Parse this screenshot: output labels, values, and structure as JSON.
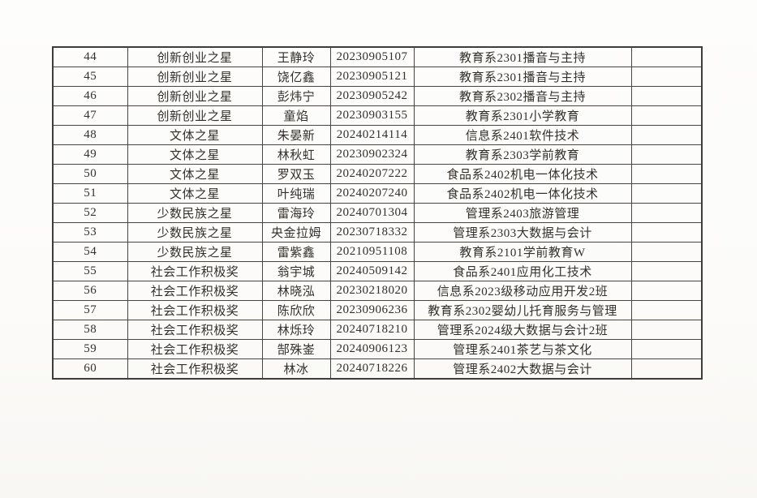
{
  "page": {
    "background_color": "#fcfbf9",
    "border_color": "#3f3d39",
    "text_color": "#33302b"
  },
  "table": {
    "rows": [
      {
        "no": "44",
        "award": "创新创业之星",
        "name": "王静玲",
        "student_id": "20230905107",
        "class_name": "教育系2301播音与主持",
        "note": ""
      },
      {
        "no": "45",
        "award": "创新创业之星",
        "name": "饶亿鑫",
        "student_id": "20230905121",
        "class_name": "教育系2301播音与主持",
        "note": ""
      },
      {
        "no": "46",
        "award": "创新创业之星",
        "name": "彭炜宁",
        "student_id": "20230905242",
        "class_name": "教育系2302播音与主持",
        "note": ""
      },
      {
        "no": "47",
        "award": "创新创业之星",
        "name": "童焰",
        "student_id": "20230903155",
        "class_name": "教育系2301小学教育",
        "note": ""
      },
      {
        "no": "48",
        "award": "文体之星",
        "name": "朱晏新",
        "student_id": "20240214114",
        "class_name": "信息系2401软件技术",
        "note": ""
      },
      {
        "no": "49",
        "award": "文体之星",
        "name": "林秋虹",
        "student_id": "20230902324",
        "class_name": "教育系2303学前教育",
        "note": ""
      },
      {
        "no": "50",
        "award": "文体之星",
        "name": "罗双玉",
        "student_id": "20240207222",
        "class_name": "食品系2402机电一体化技术",
        "note": ""
      },
      {
        "no": "51",
        "award": "文体之星",
        "name": "叶纯瑞",
        "student_id": "20240207240",
        "class_name": "食品系2402机电一体化技术",
        "note": ""
      },
      {
        "no": "52",
        "award": "少数民族之星",
        "name": "雷海玲",
        "student_id": "20240701304",
        "class_name": "管理系2403旅游管理",
        "note": ""
      },
      {
        "no": "53",
        "award": "少数民族之星",
        "name": "央金拉姆",
        "student_id": "20230718332",
        "class_name": "管理系2303大数据与会计",
        "note": ""
      },
      {
        "no": "54",
        "award": "少数民族之星",
        "name": "雷紫鑫",
        "student_id": "20210951108",
        "class_name": "教育系2101学前教育W",
        "note": ""
      },
      {
        "no": "55",
        "award": "社会工作积极奖",
        "name": "翁宇城",
        "student_id": "20240509142",
        "class_name": "食品系2401应用化工技术",
        "note": ""
      },
      {
        "no": "56",
        "award": "社会工作积极奖",
        "name": "林晓泓",
        "student_id": "20230218020",
        "class_name": "信息系2023级移动应用开发2班",
        "note": ""
      },
      {
        "no": "57",
        "award": "社会工作积极奖",
        "name": "陈欣欣",
        "student_id": "20230906236",
        "class_name": "教育系2302婴幼儿托育服务与管理",
        "note": ""
      },
      {
        "no": "58",
        "award": "社会工作积极奖",
        "name": "林烁玲",
        "student_id": "20240718210",
        "class_name": "管理系2024级大数据与会计2班",
        "note": ""
      },
      {
        "no": "59",
        "award": "社会工作积极奖",
        "name": "郜殊崟",
        "student_id": "20240906123",
        "class_name": "管理系2401茶艺与茶文化",
        "note": ""
      },
      {
        "no": "60",
        "award": "社会工作积极奖",
        "name": "林冰",
        "student_id": "20240718226",
        "class_name": "管理系2402大数据与会计",
        "note": ""
      }
    ]
  }
}
